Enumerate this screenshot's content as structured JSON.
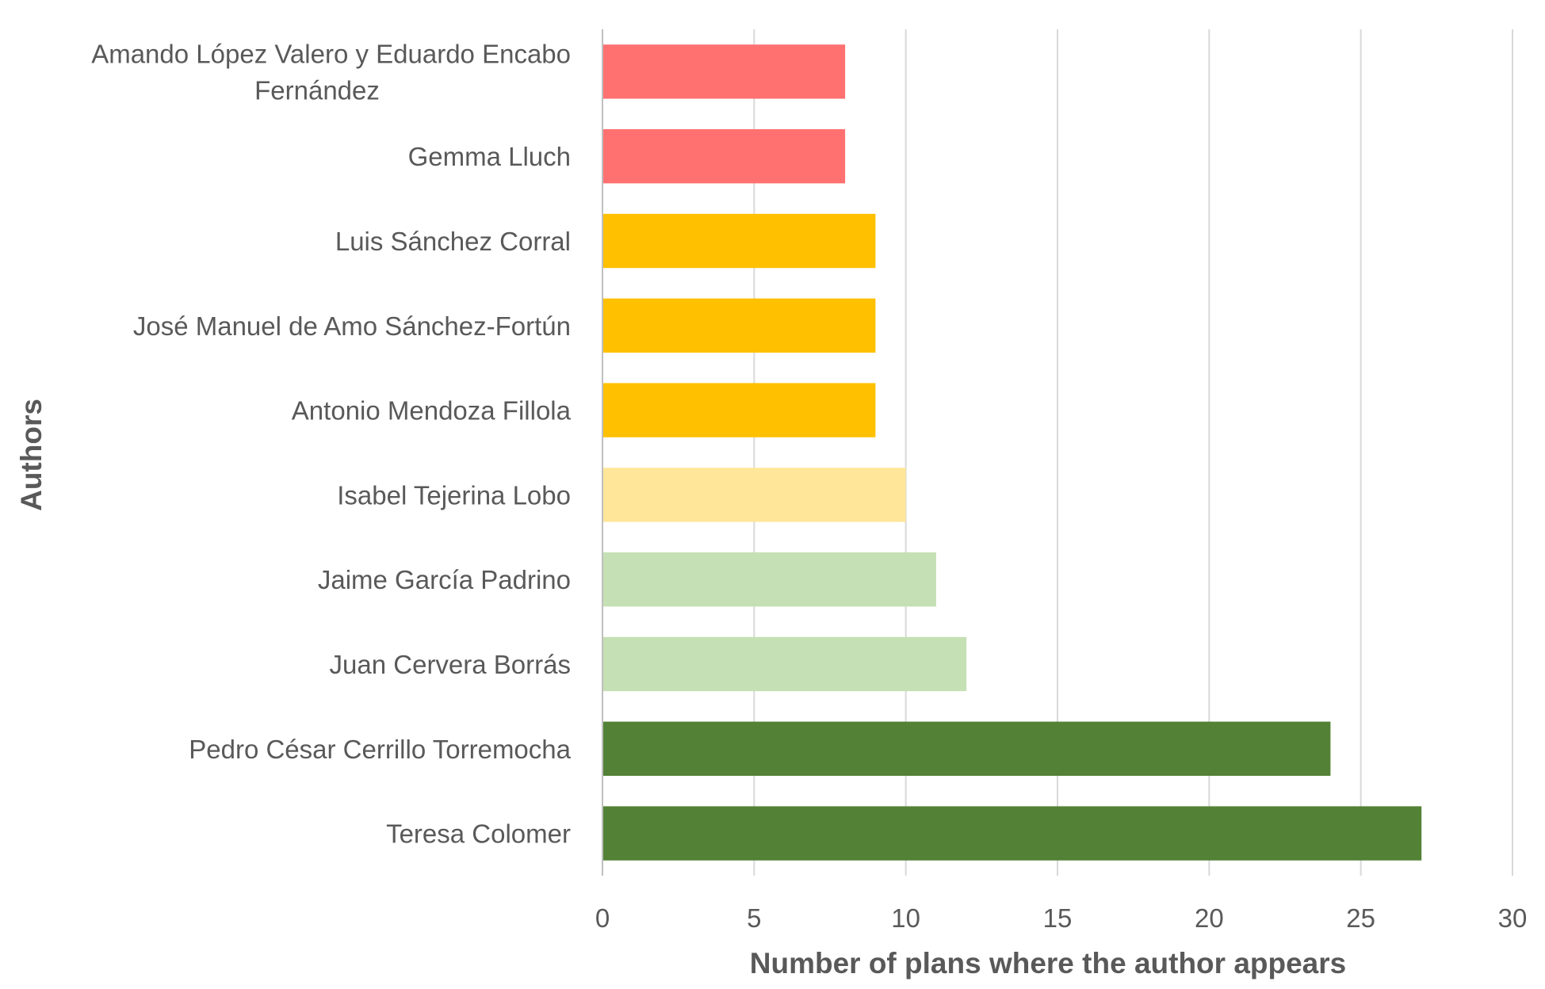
{
  "chart_data": {
    "type": "bar",
    "orientation": "horizontal",
    "title": "",
    "xlabel": "Number of plans where the author appears",
    "ylabel": "Authors",
    "xlim": [
      0,
      30
    ],
    "x_ticks": [
      "0",
      "5",
      "10",
      "15",
      "20",
      "25",
      "30"
    ],
    "grid": true,
    "legend": "none",
    "categories": [
      "Amando López Valero y Eduardo Encabo Fernández",
      "Gemma Lluch",
      "Luis Sánchez Corral",
      "José Manuel de Amo Sánchez-Fortún",
      "Antonio Mendoza Fillola",
      "Isabel Tejerina Lobo",
      "Jaime García Padrino",
      "Juan Cervera Borrás",
      "Pedro César Cerrillo Torremocha",
      "Teresa Colomer"
    ],
    "category_label_lines": [
      [
        "Amando López Valero y Eduardo Encabo",
        "Fernández"
      ],
      [
        "Gemma Lluch"
      ],
      [
        "Luis Sánchez Corral"
      ],
      [
        "José Manuel de Amo Sánchez-Fortún"
      ],
      [
        "Antonio Mendoza Fillola"
      ],
      [
        "Isabel Tejerina Lobo"
      ],
      [
        "Jaime García Padrino"
      ],
      [
        "Juan Cervera Borrás"
      ],
      [
        "Pedro César Cerrillo Torremocha"
      ],
      [
        "Teresa Colomer"
      ]
    ],
    "values": [
      8,
      8,
      9,
      9,
      9,
      10,
      11,
      12,
      24,
      27
    ],
    "bar_colors": [
      "#ff7171",
      "#ff7171",
      "#ffc000",
      "#ffc000",
      "#ffc000",
      "#ffe699",
      "#c5e0b4",
      "#c5e0b4",
      "#538135",
      "#538135"
    ]
  },
  "colors": {
    "gridline": "#d9d9d9",
    "axis_line": "#bfbfbf",
    "text": "#595959"
  }
}
